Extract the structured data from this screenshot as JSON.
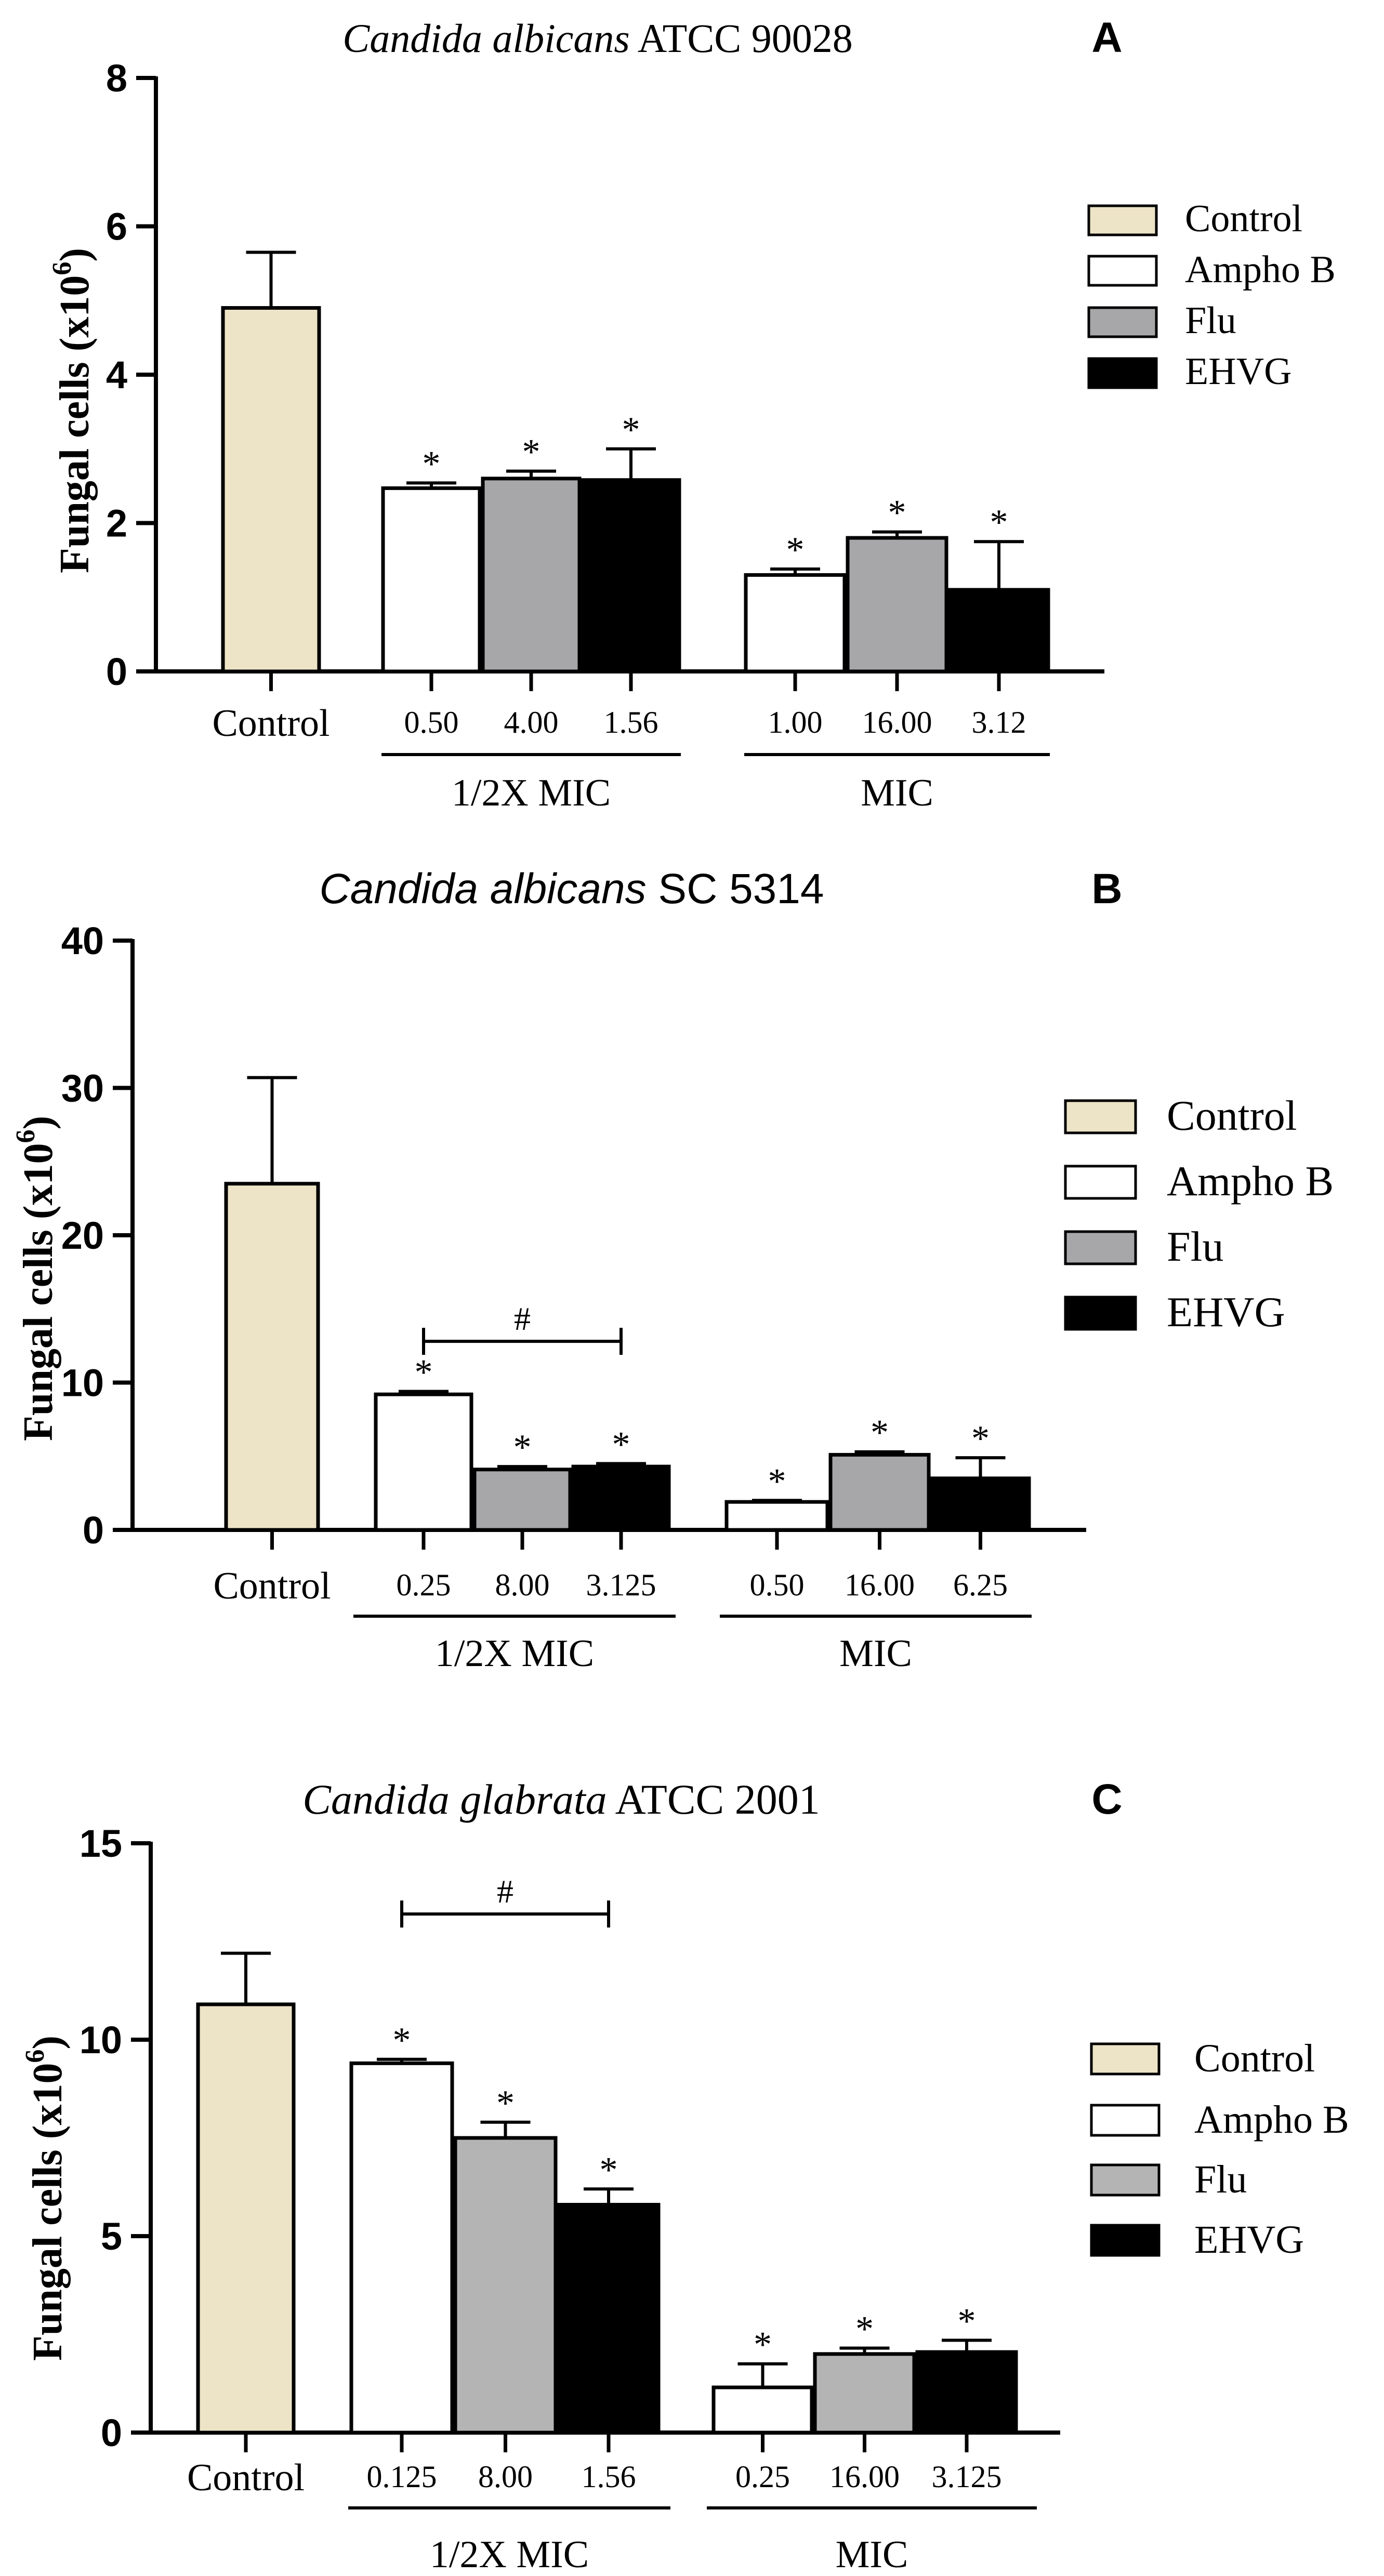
{
  "colors": {
    "control": "#ede3c6",
    "ampho": "#ffffff",
    "flu": "#a7a7a9",
    "flu_c": "#b4b4b4",
    "ehvg": "#000000",
    "ink": "#000000"
  },
  "legend_labels": [
    "Control",
    "Ampho B",
    "Flu",
    "EHVG"
  ],
  "chart_data": [
    {
      "panel": "A",
      "type": "bar",
      "title": {
        "italic": "Candida albicans",
        "rest": " ATCC 90028"
      },
      "ylabel": "Fungal cells (x10",
      "ylabel_sup": "6",
      "ylabel_end": ")",
      "ylim": [
        0,
        8
      ],
      "yticks": [
        "0",
        "2",
        "4",
        "6",
        "8"
      ],
      "control": {
        "label": "Control",
        "value": 4.9,
        "error": 0.75
      },
      "groups": [
        {
          "name": "1/2X MIC",
          "bars": [
            {
              "series": "Ampho B",
              "tick": "0.50",
              "value": 2.47,
              "error": 0.07,
              "marker": "*"
            },
            {
              "series": "Flu",
              "tick": "4.00",
              "value": 2.6,
              "error": 0.1,
              "marker": "*"
            },
            {
              "series": "EHVG",
              "tick": "1.56",
              "value": 2.58,
              "error": 0.42,
              "marker": "*"
            }
          ]
        },
        {
          "name": "MIC",
          "bars": [
            {
              "series": "Ampho B",
              "tick": "1.00",
              "value": 1.3,
              "error": 0.08,
              "marker": "*"
            },
            {
              "series": "Flu",
              "tick": "16.00",
              "value": 1.8,
              "error": 0.08,
              "marker": "*"
            },
            {
              "series": "EHVG",
              "tick": "3.12",
              "value": 1.1,
              "error": 0.65,
              "marker": "*"
            }
          ]
        }
      ],
      "bracket": null,
      "legend": [
        "Control",
        "Ampho B",
        "Flu",
        "EHVG"
      ]
    },
    {
      "panel": "B",
      "type": "bar",
      "title": {
        "italic": "Candida albicans",
        "rest": " SC 5314"
      },
      "ylabel": "Fungal cells (x10",
      "ylabel_sup": "6",
      "ylabel_end": ")",
      "ylim": [
        0,
        40
      ],
      "yticks": [
        "0",
        "10",
        "20",
        "30",
        "40"
      ],
      "control": {
        "label": "Control",
        "value": 23.5,
        "error": 7.2
      },
      "groups": [
        {
          "name": "1/2X MIC",
          "bars": [
            {
              "series": "Ampho B",
              "tick": "0.25",
              "value": 9.2,
              "error": 0.2,
              "marker": "*"
            },
            {
              "series": "Flu",
              "tick": "8.00",
              "value": 4.1,
              "error": 0.2,
              "marker": "*"
            },
            {
              "series": "EHVG",
              "tick": "3.125",
              "value": 4.3,
              "error": 0.2,
              "marker": "*"
            }
          ]
        },
        {
          "name": "MIC",
          "bars": [
            {
              "series": "Ampho B",
              "tick": "0.50",
              "value": 1.9,
              "error": 0.1,
              "marker": "*"
            },
            {
              "series": "Flu",
              "tick": "16.00",
              "value": 5.1,
              "error": 0.2,
              "marker": "*"
            },
            {
              "series": "EHVG",
              "tick": "6.25",
              "value": 3.5,
              "error": 1.4,
              "marker": "*"
            }
          ]
        }
      ],
      "bracket": {
        "label": "#",
        "from_group": 0,
        "from_bar": 0,
        "to_bar": 2,
        "value": 12.8
      },
      "legend": [
        "Control",
        "Ampho B",
        "Flu",
        "EHVG"
      ]
    },
    {
      "panel": "C",
      "type": "bar",
      "title": {
        "italic": "Candida glabrata",
        "rest": " ATCC 2001"
      },
      "ylabel": "Fungal cells (x10",
      "ylabel_sup": "6",
      "ylabel_end": ")",
      "ylim": [
        0,
        15
      ],
      "yticks": [
        "0",
        "5",
        "10",
        "15"
      ],
      "control": {
        "label": "Control",
        "value": 10.9,
        "error": 1.3
      },
      "groups": [
        {
          "name": "1/2X MIC",
          "bars": [
            {
              "series": "Ampho B",
              "tick": "0.125",
              "value": 9.4,
              "error": 0.1,
              "marker": "*"
            },
            {
              "series": "Flu",
              "tick": "8.00",
              "value": 7.5,
              "error": 0.4,
              "marker": "*"
            },
            {
              "series": "EHVG",
              "tick": "1.56",
              "value": 5.8,
              "error": 0.4,
              "marker": "*"
            }
          ]
        },
        {
          "name": "MIC",
          "bars": [
            {
              "series": "Ampho B",
              "tick": "0.25",
              "value": 1.15,
              "error": 0.6,
              "marker": "*"
            },
            {
              "series": "Flu",
              "tick": "16.00",
              "value": 2.0,
              "error": 0.15,
              "marker": "*"
            },
            {
              "series": "EHVG",
              "tick": "3.125",
              "value": 2.05,
              "error": 0.3,
              "marker": "*"
            }
          ]
        }
      ],
      "bracket": {
        "label": "#",
        "from_group": 0,
        "from_bar": 0,
        "to_bar": 2,
        "value": 13.2
      },
      "legend": [
        "Control",
        "Ampho B",
        "Flu",
        "EHVG"
      ]
    }
  ]
}
